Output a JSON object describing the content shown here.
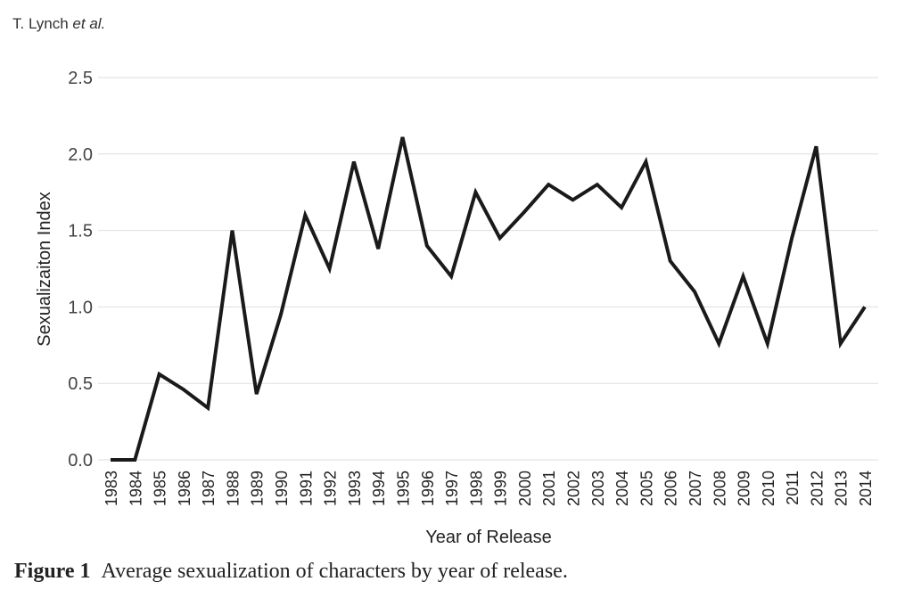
{
  "header": {
    "author": "T. Lynch",
    "etal": "et al."
  },
  "caption": {
    "label": "Figure 1",
    "text": "Average sexualization of characters by year of release."
  },
  "chart_data": {
    "type": "line",
    "title": "",
    "xlabel": "Year of Release",
    "ylabel": "Sexualizaiton Index",
    "ylim": [
      0,
      2.5
    ],
    "yticks": [
      "0.0",
      "0.5",
      "1.0",
      "1.5",
      "2.0",
      "2.5"
    ],
    "grid": "horizontal",
    "legend": "none",
    "line_color": "#1a1a1a",
    "x": [
      "1983",
      "1984",
      "1985",
      "1986",
      "1987",
      "1988",
      "1989",
      "1990",
      "1991",
      "1992",
      "1993",
      "1994",
      "1995",
      "1996",
      "1997",
      "1998",
      "1999",
      "2000",
      "2001",
      "2002",
      "2003",
      "2004",
      "2005",
      "2006",
      "2007",
      "2008",
      "2009",
      "2010",
      "2011",
      "2012",
      "2013",
      "2014"
    ],
    "values": [
      0.0,
      0.0,
      0.56,
      0.46,
      0.34,
      1.5,
      0.43,
      0.95,
      1.6,
      1.25,
      1.95,
      1.38,
      2.11,
      1.4,
      1.2,
      1.75,
      1.45,
      1.62,
      1.8,
      1.7,
      1.8,
      1.65,
      1.95,
      1.3,
      1.1,
      0.76,
      1.2,
      0.76,
      1.45,
      2.05,
      0.76,
      1.0
    ]
  }
}
